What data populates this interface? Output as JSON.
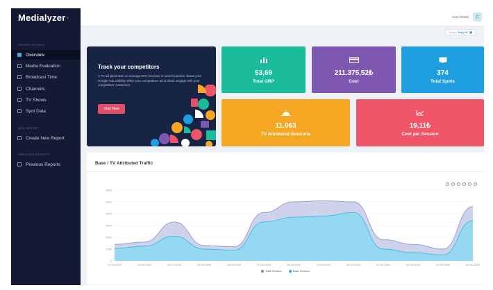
{
  "app": {
    "logo": "Medialyzer",
    "collapse_icon": "chevron-left-icon"
  },
  "sidebar": {
    "sections": [
      {
        "label": "REPORT DETAILS"
      },
      {
        "label": "NEW REPORT"
      },
      {
        "label": "PREVIOUS REPORTS"
      }
    ],
    "items": [
      {
        "label": "Overview",
        "icon": "pie-chart-icon",
        "active": true
      },
      {
        "label": "Media Evaluation",
        "icon": "checklist-icon"
      },
      {
        "label": "Broadcast Time",
        "icon": "clock-icon"
      },
      {
        "label": "Channels",
        "icon": "bell-icon"
      },
      {
        "label": "TV Shows",
        "icon": "tv-icon"
      },
      {
        "label": "Spot Data",
        "icon": "document-icon"
      },
      {
        "label": "Create New Report",
        "icon": "plus-document-icon"
      },
      {
        "label": "Previous Reports",
        "icon": "archive-icon"
      }
    ]
  },
  "topbar": {
    "user_name": "Cem Öztürk",
    "avatar_initial": "C"
  },
  "date_filter": {
    "label": "Today",
    "value": "Aug 16"
  },
  "promo": {
    "title": "Track your competitors",
    "text": "A TV ad generates on average 60% increase in search queries. Boost your Google Ads visibility when your competitors' ad is aired. Engage with your competitors' customers.",
    "button": "Start Now"
  },
  "kpis": [
    {
      "value": "53,69",
      "label": "Total GRP",
      "color": "#1bbc9b",
      "icon": "bar-chart-icon"
    },
    {
      "value": "211.375,52₺",
      "label": "Cost",
      "color": "#7e57b1",
      "icon": "credit-card-icon"
    },
    {
      "value": "374",
      "label": "Total Spots",
      "color": "#1e9ee0",
      "icon": "tv-icon"
    },
    {
      "value": "11.063",
      "label": "TV Attributed Sessions",
      "color": "#f5a623",
      "icon": "sunrise-icon"
    },
    {
      "value": "19,11₺",
      "label": "Cost per Session",
      "color": "#ef5567",
      "icon": "line-chart-icon"
    }
  ],
  "chart_panel": {
    "title": "Base / TV Attributed Traffic"
  },
  "chart_data": {
    "type": "area",
    "categories": [
      "22.04.2020",
      "23.04.2020",
      "24.04.2020",
      "25.04.2020",
      "26.04.2020",
      "27.04.2020",
      "28.04.2020",
      "29.04.2020",
      "30.04.2020",
      "01.05.2020",
      "02.05.2020",
      "03.05.2020",
      "04.05.2020"
    ],
    "y_ticks": [
      "0",
      "1000",
      "2000",
      "3000",
      "4000",
      "5000",
      "6000"
    ],
    "ylim": [
      0,
      6000
    ],
    "series": [
      {
        "name": "Total Session",
        "color": "#9aa6d8",
        "values": [
          1400,
          1600,
          3300,
          1300,
          1200,
          4100,
          5000,
          5100,
          5000,
          1800,
          1400,
          1000,
          4600
        ]
      },
      {
        "name": "Base Session",
        "color": "#5fc8ea",
        "values": [
          1050,
          1250,
          2100,
          1000,
          900,
          3300,
          3700,
          3800,
          4100,
          1000,
          700,
          500,
          3400
        ]
      }
    ],
    "legend": "bottom",
    "grid": true
  }
}
